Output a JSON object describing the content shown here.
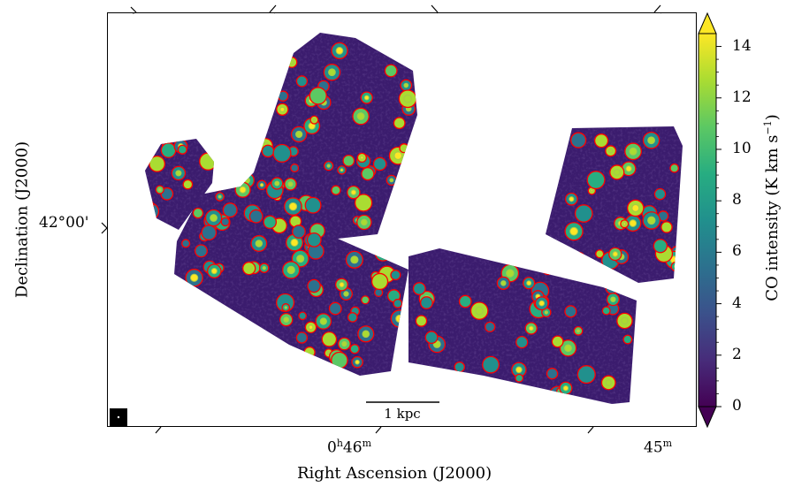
{
  "chart_data": {
    "type": "heatmap",
    "xlabel": "Right Ascension (J2000)",
    "ylabel": "Declination (J2000)",
    "x_ticks": [
      {
        "label_main": "0",
        "label_sup": "h",
        "label_main2": "46",
        "label_sup2": "m"
      },
      {
        "label_main": "45",
        "label_sup": "m"
      }
    ],
    "y_ticks": [
      "42°00'"
    ],
    "scalebar_label": "1 kpc",
    "colorbar": {
      "label_prefix": "CO intensity (K km s",
      "label_exp": "−1",
      "label_suffix": ")",
      "ticks": [
        0,
        2,
        4,
        6,
        8,
        10,
        12,
        14
      ],
      "range": [
        0,
        14.5
      ],
      "extend": "both",
      "colormap": [
        "#440154",
        "#472c7a",
        "#3b518b",
        "#2c718e",
        "#21908d",
        "#27ad81",
        "#5cc863",
        "#aadc32",
        "#fde725"
      ]
    },
    "contour_colors": [
      "#ff0000",
      "#a8c84a"
    ]
  }
}
